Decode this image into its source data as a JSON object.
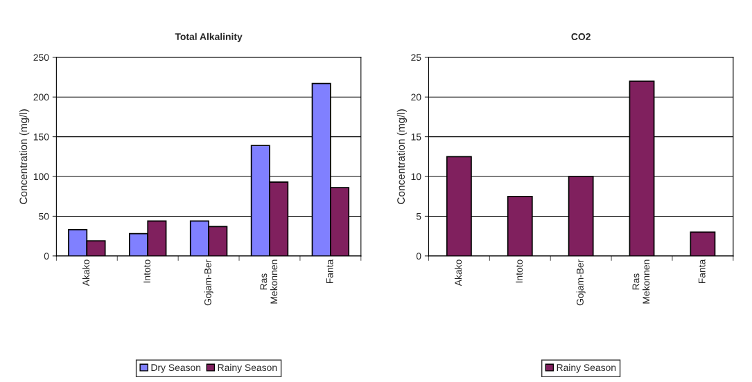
{
  "chart_data": [
    {
      "type": "bar",
      "title": "Total Alkalinity",
      "ylabel": "Concentration (mg/l)",
      "categories": [
        "Akako",
        "Intoto",
        "Gojam-Ber",
        "Ras\nMekonnen",
        "Fanta"
      ],
      "series": [
        {
          "name": "Dry Season",
          "color": "#8080ff",
          "values": [
            33,
            28,
            44,
            139,
            217
          ]
        },
        {
          "name": "Rainy Season",
          "color": "#80205e",
          "values": [
            19,
            44,
            37,
            93,
            86
          ]
        }
      ],
      "ylim": [
        0,
        250
      ],
      "yticks": [
        0,
        50,
        100,
        150,
        200,
        250
      ],
      "grid": "y",
      "legend": "bottom"
    },
    {
      "type": "bar",
      "title": "CO2",
      "ylabel": "Concentration (mg/l)",
      "categories": [
        "Akako",
        "Intoto",
        "Gojam-Ber",
        "Ras\nMekonnen",
        "Fanta"
      ],
      "series": [
        {
          "name": "Rainy Season",
          "color": "#80205e",
          "values": [
            12.5,
            7.5,
            10,
            22,
            3
          ]
        }
      ],
      "ylim": [
        0,
        25
      ],
      "yticks": [
        0,
        5,
        10,
        15,
        20,
        25
      ],
      "grid": "y",
      "legend": "bottom"
    }
  ]
}
